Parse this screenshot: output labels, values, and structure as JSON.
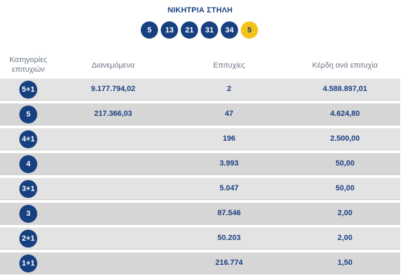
{
  "title": "ΝΙΚΗΤΡΙΑ ΣΤΗΛΗ",
  "winning_numbers": [
    "5",
    "13",
    "21",
    "31",
    "34"
  ],
  "joker_number": "5",
  "headers": {
    "category": "Κατηγορίες επιτυχιών",
    "distributed": "Διανεμόμενα",
    "successes": "Επιτυχίες",
    "prize_per_success": "Κέρδη ανά επιτυχία"
  },
  "rows": [
    {
      "category": "5+1",
      "distributed": "9.177.794,02",
      "successes": "2",
      "prize": "4.588.897,01"
    },
    {
      "category": "5",
      "distributed": "217.366,03",
      "successes": "47",
      "prize": "4.624,80"
    },
    {
      "category": "4+1",
      "distributed": "",
      "successes": "196",
      "prize": "2.500,00"
    },
    {
      "category": "4",
      "distributed": "",
      "successes": "3.993",
      "prize": "50,00"
    },
    {
      "category": "3+1",
      "distributed": "",
      "successes": "5.047",
      "prize": "50,00"
    },
    {
      "category": "3",
      "distributed": "",
      "successes": "87.546",
      "prize": "2,00"
    },
    {
      "category": "2+1",
      "distributed": "",
      "successes": "50.203",
      "prize": "2,00"
    },
    {
      "category": "1+1",
      "distributed": "",
      "successes": "216.774",
      "prize": "1,50"
    }
  ],
  "colors": {
    "ball": "#16407f",
    "joker": "#f3c318",
    "text": "#1a3f83"
  }
}
